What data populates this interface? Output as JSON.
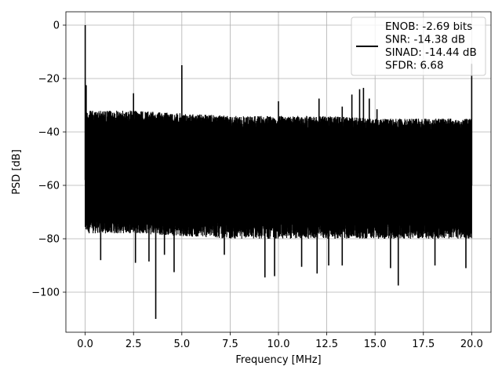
{
  "chart_data": {
    "type": "line",
    "title": "",
    "xlabel": "Frequency [MHz]",
    "ylabel": "PSD [dB]",
    "xlim": [
      -1.0,
      21.0
    ],
    "ylim": [
      -115,
      5
    ],
    "xticks": [
      0.0,
      2.5,
      5.0,
      7.5,
      10.0,
      12.5,
      15.0,
      17.5,
      20.0
    ],
    "xtick_labels": [
      "0.0",
      "2.5",
      "5.0",
      "7.5",
      "10.0",
      "12.5",
      "15.0",
      "17.5",
      "20.0"
    ],
    "yticks": [
      0,
      -20,
      -40,
      -60,
      -80,
      -100
    ],
    "ytick_labels": [
      "0",
      "−20",
      "−40",
      "−60",
      "−80",
      "−100"
    ],
    "grid": true,
    "legend_position": "top-right",
    "series": [
      {
        "name": "ENOB: -2.69 bits\nSNR: -14.38 dB\nSINAD: -14.44 dB\nSFDR: 6.68",
        "legend_lines": [
          "ENOB: -2.69 bits",
          "SNR: -14.38 dB",
          "SINAD: -14.44 dB",
          "SFDR: 6.68"
        ],
        "color": "#000000",
        "description": "dense noise floor",
        "noise_envelope": {
          "x": [
            0.0,
            2.5,
            5.0,
            7.5,
            10.0,
            12.5,
            15.0,
            17.5,
            20.0
          ],
          "upper": [
            -32,
            -32,
            -33,
            -34,
            -34,
            -34,
            -35,
            -35,
            -35
          ],
          "lower": [
            -78,
            -78,
            -79,
            -80,
            -80,
            -80,
            -80,
            -80,
            -80
          ]
        },
        "peaks": [
          {
            "x": 0.0,
            "y": 0.0
          },
          {
            "x": 0.05,
            "y": -22.5
          },
          {
            "x": 2.5,
            "y": -25.5
          },
          {
            "x": 5.0,
            "y": -15.0
          },
          {
            "x": 10.0,
            "y": -28.5
          },
          {
            "x": 12.1,
            "y": -27.5
          },
          {
            "x": 13.3,
            "y": -30.5
          },
          {
            "x": 13.8,
            "y": -26.0
          },
          {
            "x": 14.2,
            "y": -24.0
          },
          {
            "x": 14.4,
            "y": -23.5
          },
          {
            "x": 14.7,
            "y": -27.5
          },
          {
            "x": 15.1,
            "y": -31.5
          },
          {
            "x": 20.0,
            "y": -14.5
          }
        ],
        "dips": [
          {
            "x": 0.8,
            "y": -88.0
          },
          {
            "x": 2.6,
            "y": -89.0
          },
          {
            "x": 3.3,
            "y": -88.5
          },
          {
            "x": 3.65,
            "y": -110.0
          },
          {
            "x": 4.1,
            "y": -86.0
          },
          {
            "x": 4.6,
            "y": -92.5
          },
          {
            "x": 7.2,
            "y": -86.0
          },
          {
            "x": 9.3,
            "y": -94.5
          },
          {
            "x": 9.8,
            "y": -94.0
          },
          {
            "x": 11.2,
            "y": -90.5
          },
          {
            "x": 12.0,
            "y": -93.0
          },
          {
            "x": 12.6,
            "y": -90.0
          },
          {
            "x": 13.3,
            "y": -90.0
          },
          {
            "x": 15.8,
            "y": -91.0
          },
          {
            "x": 16.2,
            "y": -97.5
          },
          {
            "x": 18.1,
            "y": -90.0
          },
          {
            "x": 19.7,
            "y": -91.0
          }
        ]
      }
    ]
  }
}
